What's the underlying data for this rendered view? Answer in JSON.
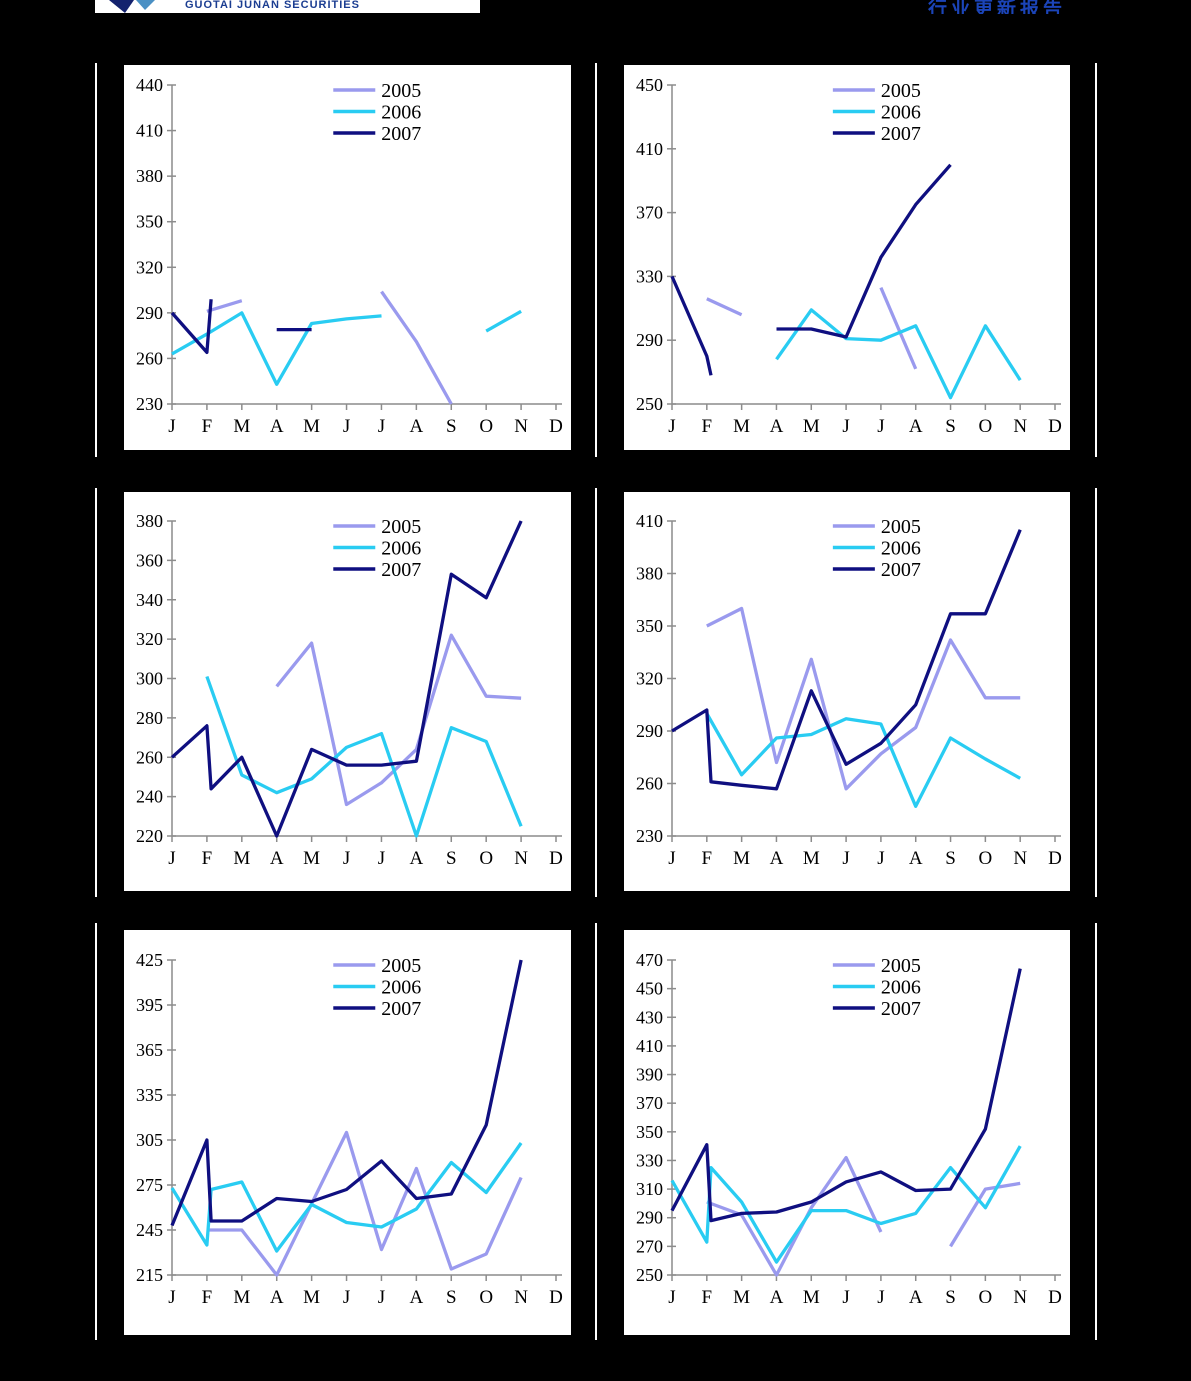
{
  "page": {
    "background": "#000000",
    "panel_background": "#ffffff",
    "axis_color": "#8c8c8c",
    "text_color": "#000000"
  },
  "header": {
    "brand": "GUOTAI JUNAN SECURITIES",
    "brand_color": "#1b3d91",
    "doc_title": "行业更新报告",
    "doc_title_color": "#1b44b8",
    "logo_icon": "guotai-junan-emblem"
  },
  "months": [
    "J",
    "F",
    "M",
    "A",
    "M",
    "J",
    "J",
    "A",
    "S",
    "O",
    "N",
    "D"
  ],
  "legend_labels": [
    "2005",
    "2006",
    "2007"
  ],
  "series_colors": {
    "2005": "#9a9aee",
    "2006": "#29ccf2",
    "2007": "#0f0f80"
  },
  "chart_data": [
    {
      "type": "line",
      "position": "top-left",
      "ylim": [
        230,
        440
      ],
      "ytick_step": 30,
      "grid": false,
      "legend_position": "top-center",
      "series": [
        {
          "name": "2005",
          "segments": [
            [
              [
                1,
                291
              ],
              [
                2,
                298
              ]
            ],
            [
              [
                6,
                304
              ],
              [
                7,
                271
              ],
              [
                8,
                230
              ]
            ]
          ]
        },
        {
          "name": "2006",
          "segments": [
            [
              [
                0,
                263
              ],
              [
                1,
                276
              ],
              [
                2,
                290
              ],
              [
                3,
                243
              ],
              [
                4,
                283
              ],
              [
                5,
                286
              ],
              [
                6,
                288
              ]
            ],
            [
              [
                9,
                278
              ],
              [
                10,
                291
              ]
            ]
          ]
        },
        {
          "name": "2007",
          "segments": [
            [
              [
                0,
                290
              ],
              [
                1,
                264
              ],
              [
                1.12,
                299
              ]
            ],
            [
              [
                3,
                279
              ],
              [
                4,
                279
              ]
            ]
          ]
        }
      ]
    },
    {
      "type": "line",
      "position": "top-right",
      "ylim": [
        250,
        450
      ],
      "ytick_step": 40,
      "grid": false,
      "legend_position": "top-center",
      "series": [
        {
          "name": "2005",
          "segments": [
            [
              [
                1,
                316
              ],
              [
                2,
                306
              ]
            ],
            [
              [
                6,
                323
              ],
              [
                7,
                272
              ]
            ]
          ]
        },
        {
          "name": "2006",
          "segments": [
            [
              [
                3,
                278
              ],
              [
                4,
                309
              ],
              [
                5,
                291
              ],
              [
                6,
                290
              ],
              [
                7,
                299
              ],
              [
                8,
                254
              ],
              [
                9,
                299
              ],
              [
                10,
                265
              ]
            ]
          ]
        },
        {
          "name": "2007",
          "segments": [
            [
              [
                0,
                330
              ],
              [
                1,
                280
              ],
              [
                1.12,
                268
              ]
            ],
            [
              [
                3,
                297
              ],
              [
                4,
                297
              ],
              [
                5,
                292
              ],
              [
                6,
                342
              ],
              [
                7,
                375
              ],
              [
                8,
                400
              ]
            ]
          ]
        }
      ]
    },
    {
      "type": "line",
      "position": "middle-left",
      "ylim": [
        220,
        380
      ],
      "ytick_step": 20,
      "grid": false,
      "legend_position": "top-center",
      "series": [
        {
          "name": "2005",
          "segments": [
            [
              [
                3,
                296
              ],
              [
                4,
                318
              ],
              [
                5,
                236
              ],
              [
                6,
                247
              ],
              [
                7,
                264
              ],
              [
                8,
                322
              ],
              [
                9,
                291
              ],
              [
                10,
                290
              ]
            ]
          ]
        },
        {
          "name": "2006",
          "segments": [
            [
              [
                1,
                301
              ],
              [
                2,
                251
              ],
              [
                3,
                242
              ],
              [
                4,
                249
              ],
              [
                5,
                265
              ],
              [
                6,
                272
              ],
              [
                7,
                220
              ],
              [
                8,
                275
              ],
              [
                9,
                268
              ],
              [
                10,
                225
              ]
            ]
          ]
        },
        {
          "name": "2007",
          "segments": [
            [
              [
                0,
                260
              ],
              [
                1,
                276
              ],
              [
                1.12,
                244
              ],
              [
                2,
                260
              ],
              [
                3,
                220
              ],
              [
                4,
                264
              ],
              [
                5,
                256
              ],
              [
                6,
                256
              ],
              [
                7,
                258
              ],
              [
                8,
                353
              ],
              [
                9,
                341
              ],
              [
                10,
                380
              ]
            ]
          ]
        }
      ]
    },
    {
      "type": "line",
      "position": "middle-right",
      "ylim": [
        230,
        410
      ],
      "ytick_step": 30,
      "grid": false,
      "legend_position": "top-center",
      "series": [
        {
          "name": "2005",
          "segments": [
            [
              [
                1,
                350
              ],
              [
                2,
                360
              ],
              [
                3,
                272
              ],
              [
                4,
                331
              ],
              [
                5,
                257
              ],
              [
                6,
                277
              ],
              [
                7,
                292
              ],
              [
                8,
                342
              ],
              [
                9,
                309
              ],
              [
                10,
                309
              ]
            ]
          ]
        },
        {
          "name": "2006",
          "segments": [
            [
              [
                1,
                300
              ],
              [
                2,
                265
              ],
              [
                3,
                286
              ],
              [
                4,
                288
              ],
              [
                5,
                297
              ],
              [
                6,
                294
              ],
              [
                7,
                247
              ],
              [
                8,
                286
              ],
              [
                9,
                274
              ],
              [
                10,
                263
              ]
            ]
          ]
        },
        {
          "name": "2007",
          "segments": [
            [
              [
                0,
                290
              ],
              [
                1,
                302
              ],
              [
                1.12,
                261
              ],
              [
                2,
                259
              ],
              [
                3,
                257
              ],
              [
                4,
                313
              ],
              [
                5,
                271
              ],
              [
                6,
                283
              ],
              [
                7,
                305
              ],
              [
                8,
                357
              ],
              [
                9,
                357
              ],
              [
                10,
                405
              ]
            ]
          ]
        }
      ]
    },
    {
      "type": "line",
      "position": "bottom-left",
      "ylim": [
        215,
        425
      ],
      "ytick_step": 30,
      "grid": false,
      "legend_position": "top-center",
      "series": [
        {
          "name": "2005",
          "segments": [
            [
              [
                1,
                245
              ],
              [
                2,
                245
              ],
              [
                3,
                215
              ],
              [
                5,
                310
              ],
              [
                6,
                232
              ],
              [
                7,
                286
              ],
              [
                8,
                219
              ],
              [
                9,
                229
              ],
              [
                10,
                280
              ]
            ]
          ]
        },
        {
          "name": "2006",
          "segments": [
            [
              [
                0,
                273
              ],
              [
                1,
                235
              ],
              [
                1.12,
                272
              ],
              [
                2,
                277
              ],
              [
                3,
                231
              ],
              [
                4,
                262
              ],
              [
                5,
                250
              ],
              [
                6,
                247
              ],
              [
                7,
                259
              ],
              [
                8,
                290
              ],
              [
                9,
                270
              ],
              [
                10,
                303
              ]
            ]
          ]
        },
        {
          "name": "2007",
          "segments": [
            [
              [
                0,
                248
              ],
              [
                1,
                305
              ],
              [
                1.12,
                251
              ],
              [
                2,
                251
              ],
              [
                3,
                266
              ],
              [
                4,
                264
              ],
              [
                5,
                272
              ],
              [
                6,
                291
              ],
              [
                7,
                266
              ],
              [
                8,
                269
              ],
              [
                9,
                315
              ],
              [
                10,
                425
              ]
            ]
          ]
        }
      ]
    },
    {
      "type": "line",
      "position": "bottom-right",
      "ylim": [
        250,
        470
      ],
      "ytick_step": 20,
      "grid": false,
      "legend_position": "top-center",
      "series": [
        {
          "name": "2005",
          "segments": [
            [
              [
                1,
                301
              ],
              [
                2,
                292
              ],
              [
                3,
                250
              ],
              [
                4,
                297
              ],
              [
                5,
                332
              ],
              [
                6,
                280
              ]
            ],
            [
              [
                8,
                270
              ],
              [
                9,
                310
              ],
              [
                10,
                314
              ]
            ]
          ]
        },
        {
          "name": "2006",
          "segments": [
            [
              [
                0,
                316
              ],
              [
                1,
                273
              ],
              [
                1.12,
                325
              ],
              [
                2,
                301
              ],
              [
                3,
                259
              ],
              [
                4,
                295
              ],
              [
                5,
                295
              ],
              [
                6,
                286
              ],
              [
                7,
                293
              ],
              [
                8,
                325
              ],
              [
                9,
                297
              ],
              [
                10,
                340
              ]
            ]
          ]
        },
        {
          "name": "2007",
          "segments": [
            [
              [
                0,
                295
              ],
              [
                1,
                341
              ],
              [
                1.12,
                288
              ],
              [
                2,
                293
              ],
              [
                3,
                294
              ],
              [
                4,
                301
              ],
              [
                5,
                315
              ],
              [
                6,
                322
              ],
              [
                7,
                309
              ],
              [
                8,
                310
              ],
              [
                9,
                352
              ],
              [
                10,
                464
              ]
            ]
          ]
        }
      ]
    }
  ]
}
